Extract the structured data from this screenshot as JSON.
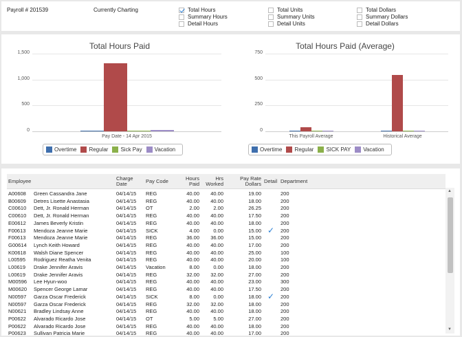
{
  "header": {
    "payroll": "Payroll # 201539",
    "charting_label": "Currently Charting",
    "options": [
      {
        "label": "Total Hours",
        "checked": true
      },
      {
        "label": "Summary Hours",
        "checked": false
      },
      {
        "label": "Detail Hours",
        "checked": false
      },
      {
        "label": "Total Units",
        "checked": false
      },
      {
        "label": "Summary Units",
        "checked": false
      },
      {
        "label": "Detail Units",
        "checked": false
      },
      {
        "label": "Total Dollars",
        "checked": false
      },
      {
        "label": "Summary Dollars",
        "checked": false
      },
      {
        "label": "Detail Dollars",
        "checked": false
      }
    ]
  },
  "colors": {
    "overtime": "#3f6fad",
    "regular": "#b04a4a",
    "sick": "#8bb04a",
    "vacation": "#9c8cc6"
  },
  "chart_data": [
    {
      "type": "bar",
      "title": "Total Hours Paid",
      "categories": [
        "Pay Date - 14 Apr 2015"
      ],
      "series": [
        {
          "name": "Overtime",
          "values": [
            15
          ]
        },
        {
          "name": "Regular",
          "values": [
            1320
          ]
        },
        {
          "name": "Sick Pay",
          "values": [
            12
          ]
        },
        {
          "name": "Vacation",
          "values": [
            30
          ]
        }
      ],
      "yticks": [
        "1,500",
        "1,000",
        "500",
        "0"
      ],
      "ylim": [
        0,
        1500
      ],
      "legend": "bottom"
    },
    {
      "type": "bar",
      "title": "Total Hours Paid (Average)",
      "categories": [
        "This Payroll Average",
        "Historical Average"
      ],
      "series": [
        {
          "name": "Overtime",
          "values": [
            1,
            2
          ]
        },
        {
          "name": "Regular",
          "values": [
            40,
            545
          ]
        },
        {
          "name": "SICK PAY",
          "values": [
            1,
            1
          ]
        },
        {
          "name": "Vacation",
          "values": [
            2,
            3
          ]
        }
      ],
      "yticks": [
        "750",
        "500",
        "250",
        "0"
      ],
      "ylim": [
        0,
        750
      ],
      "legend": "bottom"
    }
  ],
  "table": {
    "headers": {
      "employee": "Employee",
      "charge_date": "Charge Date",
      "pay_code": "Pay Code",
      "hours_paid": "Hours Paid",
      "hrs_worked": "Hrs Worked",
      "pay_rate": "Pay Rate Dollars",
      "detail": "Detail",
      "department": "Department"
    },
    "rows": [
      {
        "id": "A00608",
        "name": "Green Cassandra Jane",
        "date": "04/14/15",
        "code": "REG",
        "paid": "40.00",
        "worked": "40.00",
        "rate": "19.00",
        "detail": false,
        "dept": "200"
      },
      {
        "id": "B00609",
        "name": "Detres Lisette Anastasia",
        "date": "04/14/15",
        "code": "REG",
        "paid": "40.00",
        "worked": "40.00",
        "rate": "18.00",
        "detail": false,
        "dept": "200"
      },
      {
        "id": "C00610",
        "name": "Dett, Jr. Ronald Herman",
        "date": "04/14/15",
        "code": "OT",
        "paid": "2.00",
        "worked": "2.00",
        "rate": "26.25",
        "detail": false,
        "dept": "200"
      },
      {
        "id": "C00610",
        "name": "Dett, Jr. Ronald Herman",
        "date": "04/14/15",
        "code": "REG",
        "paid": "40.00",
        "worked": "40.00",
        "rate": "17.50",
        "detail": false,
        "dept": "200"
      },
      {
        "id": "E00612",
        "name": "James Beverly Kristin",
        "date": "04/14/15",
        "code": "REG",
        "paid": "40.00",
        "worked": "40.00",
        "rate": "18.00",
        "detail": false,
        "dept": "200"
      },
      {
        "id": "F00613",
        "name": "Mendoza Jeanne Marie",
        "date": "04/14/15",
        "code": "SICK",
        "paid": "4.00",
        "worked": "0.00",
        "rate": "15.00",
        "detail": true,
        "dept": "200"
      },
      {
        "id": "F00613",
        "name": "Mendoza Jeanne Marie",
        "date": "04/14/15",
        "code": "REG",
        "paid": "36.00",
        "worked": "36.00",
        "rate": "15.00",
        "detail": false,
        "dept": "200"
      },
      {
        "id": "G00614",
        "name": "Lynch Keith Howard",
        "date": "04/14/15",
        "code": "REG",
        "paid": "40.00",
        "worked": "40.00",
        "rate": "17.00",
        "detail": false,
        "dept": "200"
      },
      {
        "id": "K00618",
        "name": "Walsh Diane Spencer",
        "date": "04/14/15",
        "code": "REG",
        "paid": "40.00",
        "worked": "40.00",
        "rate": "25.00",
        "detail": false,
        "dept": "100"
      },
      {
        "id": "L00595",
        "name": "Rodriguez Reatha Venita",
        "date": "04/14/15",
        "code": "REG",
        "paid": "40.00",
        "worked": "40.00",
        "rate": "20.00",
        "detail": false,
        "dept": "100"
      },
      {
        "id": "L00619",
        "name": "Drake Jennifer Aravis",
        "date": "04/14/15",
        "code": "Vacation",
        "paid": "8.00",
        "worked": "0.00",
        "rate": "18.00",
        "detail": false,
        "dept": "200"
      },
      {
        "id": "L00619",
        "name": "Drake Jennifer Aravis",
        "date": "04/14/15",
        "code": "REG",
        "paid": "32.00",
        "worked": "32.00",
        "rate": "27.00",
        "detail": false,
        "dept": "200"
      },
      {
        "id": "M00596",
        "name": "Lee Hyun-woo",
        "date": "04/14/15",
        "code": "REG",
        "paid": "40.00",
        "worked": "40.00",
        "rate": "23.00",
        "detail": false,
        "dept": "300"
      },
      {
        "id": "M00620",
        "name": "Spencer George Lamar",
        "date": "04/14/15",
        "code": "REG",
        "paid": "40.00",
        "worked": "40.00",
        "rate": "17.50",
        "detail": false,
        "dept": "200"
      },
      {
        "id": "N00597",
        "name": "Garza Oscar Frederick",
        "date": "04/14/15",
        "code": "SICK",
        "paid": "8.00",
        "worked": "0.00",
        "rate": "18.00",
        "detail": true,
        "dept": "200"
      },
      {
        "id": "N00597",
        "name": "Garza Oscar Frederick",
        "date": "04/14/15",
        "code": "REG",
        "paid": "32.00",
        "worked": "32.00",
        "rate": "18.00",
        "detail": false,
        "dept": "200"
      },
      {
        "id": "N00621",
        "name": "Bradley Lindsay Anne",
        "date": "04/14/15",
        "code": "REG",
        "paid": "40.00",
        "worked": "40.00",
        "rate": "18.00",
        "detail": false,
        "dept": "200"
      },
      {
        "id": "P00622",
        "name": "Alvarado Ricardo Jose",
        "date": "04/14/15",
        "code": "OT",
        "paid": "5.00",
        "worked": "5.00",
        "rate": "27.00",
        "detail": false,
        "dept": "200"
      },
      {
        "id": "P00622",
        "name": "Alvarado Ricardo Jose",
        "date": "04/14/15",
        "code": "REG",
        "paid": "40.00",
        "worked": "40.00",
        "rate": "18.00",
        "detail": false,
        "dept": "200"
      },
      {
        "id": "P00623",
        "name": "Sullivan Patricia Marie",
        "date": "04/14/15",
        "code": "REG",
        "paid": "40.00",
        "worked": "40.00",
        "rate": "17.00",
        "detail": false,
        "dept": "200"
      }
    ]
  },
  "scrollbar": {
    "up": "▲",
    "down": "▼"
  }
}
